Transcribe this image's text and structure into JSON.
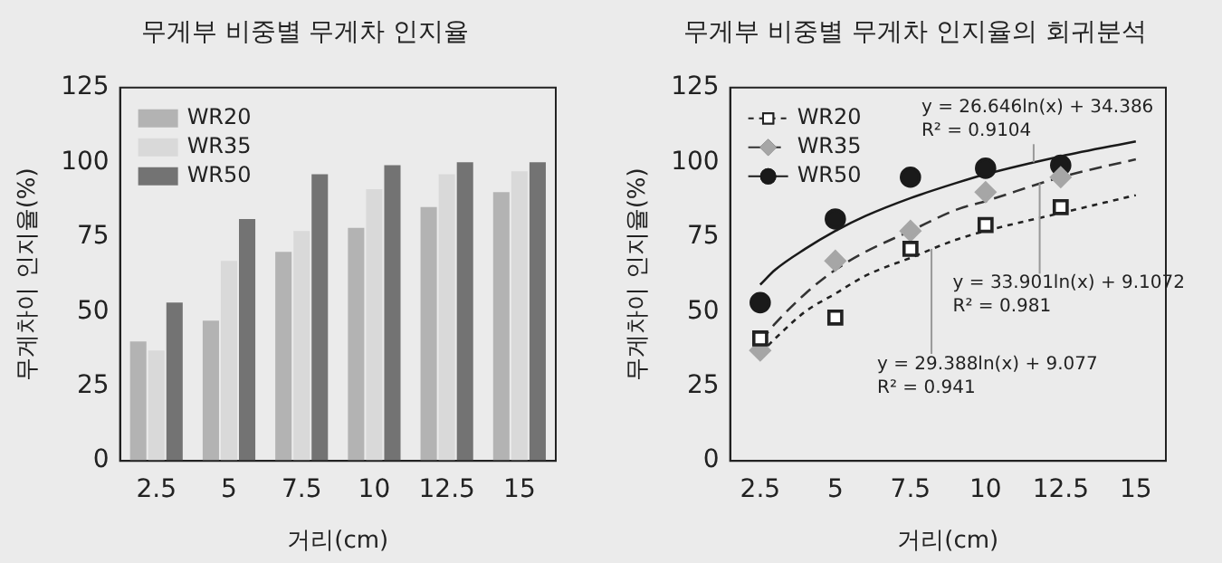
{
  "chart_data": [
    {
      "type": "bar",
      "title": "무게부 비중별 무게차 인지율",
      "xlabel": "거리(cm)",
      "ylabel": "무게차이 인지율(%)",
      "categories": [
        "2.5",
        "5",
        "7.5",
        "10",
        "12.5",
        "15"
      ],
      "series": [
        {
          "name": "WR20",
          "color": "#b3b3b3",
          "values": [
            40,
            47,
            70,
            78,
            85,
            90
          ]
        },
        {
          "name": "WR35",
          "color": "#d9d9d9",
          "values": [
            37,
            67,
            77,
            91,
            96,
            97
          ]
        },
        {
          "name": "WR50",
          "color": "#737373",
          "values": [
            53,
            81,
            96,
            99,
            100,
            100
          ]
        }
      ],
      "ylim": [
        0,
        125
      ],
      "yticks": [
        0,
        25,
        50,
        75,
        100,
        125
      ],
      "grid": false,
      "legend": "top left"
    },
    {
      "type": "scatter",
      "title": "무게부 비중별 무게차 인지율의 회귀분석",
      "xlabel": "거리(cm)",
      "ylabel": "무게차이 인지율(%)",
      "x": [
        2.5,
        5,
        7.5,
        10,
        12.5
      ],
      "series": [
        {
          "name": "WR20",
          "color": "#222222",
          "marker": "square",
          "values": [
            41,
            48,
            71,
            79,
            85
          ]
        },
        {
          "name": "WR35",
          "color": "#a6a6a6",
          "marker": "diamond",
          "values": [
            37,
            67,
            77,
            90,
            95
          ]
        },
        {
          "name": "WR50",
          "color": "#1a1a1a",
          "marker": "circle",
          "values": [
            53,
            81,
            95,
            98,
            99
          ]
        },
        {
          "type": "line",
          "color": "#222222",
          "line_style": "dotted",
          "x": [
            2.5,
            3,
            4,
            5,
            6,
            7.5,
            9,
            10,
            12.5,
            15
          ],
          "values": [
            36,
            41,
            50,
            56,
            62,
            68,
            74,
            77,
            83,
            89
          ]
        },
        {
          "type": "line",
          "color": "#333333",
          "line_style": "dashed",
          "x": [
            2.5,
            3,
            4,
            5,
            6,
            7.5,
            9,
            10,
            12.5,
            15
          ],
          "values": [
            40,
            46,
            56,
            64,
            70,
            77,
            84,
            87,
            95,
            101
          ]
        },
        {
          "type": "line",
          "color": "#1a1a1a",
          "line_style": "solid",
          "x": [
            2.5,
            3,
            4,
            5,
            6,
            7.5,
            9,
            10,
            12.5,
            15
          ],
          "values": [
            59,
            64,
            71,
            77,
            82,
            88,
            93,
            96,
            102,
            107
          ]
        }
      ],
      "annotations": [
        {
          "text": "y = 26.646ln(x) + 34.386\nR² = 0.9104",
          "x": 11.6,
          "y": 100
        },
        {
          "text": "y = 33.901ln(x) + 9.1072\nR² = 0.981",
          "x": 11.8,
          "y": 93
        },
        {
          "text": "y = 29.388ln(x) + 9.077\nR² = 0.941",
          "x": 8.2,
          "y": 71
        }
      ],
      "xlim": [
        1.5,
        16
      ],
      "xticks": [
        2.5,
        5,
        7.5,
        10,
        12.5,
        15
      ],
      "ylim": [
        0,
        125
      ],
      "yticks": [
        0,
        25,
        50,
        75,
        100,
        125
      ],
      "grid": false,
      "legend": "top left"
    }
  ]
}
